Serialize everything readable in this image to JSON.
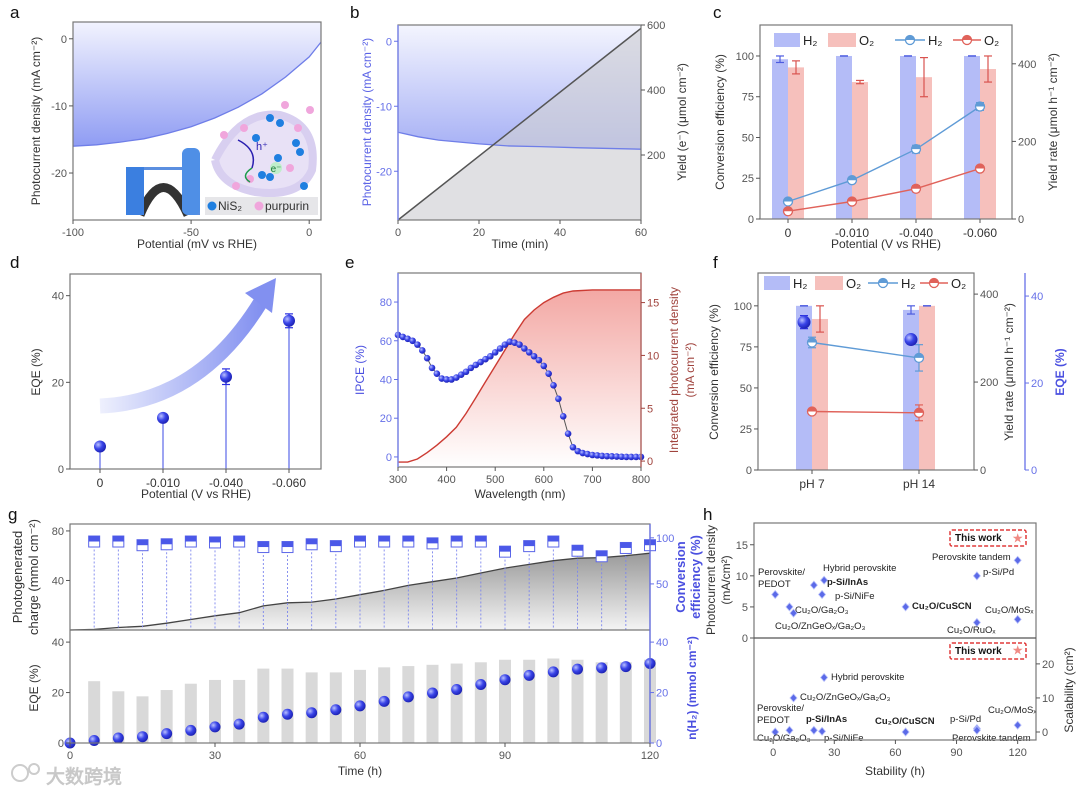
{
  "watermark": "大数跨境",
  "chart_data": [
    {
      "panel": "a",
      "type": "line",
      "xlabel": "Potential (mV vs RHE)",
      "ylabel": "Photocurrent density (mA cm⁻²)",
      "xlim": [
        -100,
        5
      ],
      "ylim": [
        -27,
        2.5
      ],
      "xticks": [
        -100,
        -50,
        0
      ],
      "yticks": [
        0,
        -10,
        -20
      ],
      "series": [
        {
          "name": "J-V",
          "color": "#6f7ee8",
          "points": [
            [
              -100,
              -16
            ],
            [
              -90,
              -15.8
            ],
            [
              -80,
              -15.4
            ],
            [
              -70,
              -14.9
            ],
            [
              -60,
              -14.1
            ],
            [
              -50,
              -13.1
            ],
            [
              -40,
              -11.8
            ],
            [
              -30,
              -10.2
            ],
            [
              -20,
              -8.2
            ],
            [
              -10,
              -5.7
            ],
            [
              0,
              -2.7
            ],
            [
              5,
              -0.5
            ]
          ]
        }
      ],
      "inset": {
        "legend": [
          "NiS₂",
          "purpurin"
        ],
        "hole_label": "h⁺",
        "electron_label": "e⁻"
      }
    },
    {
      "panel": "b",
      "type": "line",
      "xlabel": "Time (min)",
      "ylabel": "Photocurrent density (mA cm⁻²)",
      "ylabel_right": "Yield (e⁻) (μmol cm⁻²)",
      "xlim": [
        0,
        60
      ],
      "ylim": [
        -27.5,
        2.5
      ],
      "ylim_right": [
        0,
        600
      ],
      "xticks": [
        0,
        20,
        40,
        60
      ],
      "yticks": [
        0,
        -10,
        -20
      ],
      "yticks_right": [
        200,
        400,
        600
      ],
      "series": [
        {
          "name": "Photocurrent density",
          "axis": "left",
          "color": "#6f7ee8",
          "points": [
            [
              0,
              -14
            ],
            [
              5,
              -14.7
            ],
            [
              10,
              -15.2
            ],
            [
              15,
              -15.5
            ],
            [
              20,
              -15.8
            ],
            [
              27,
              -16.1
            ],
            [
              35,
              -16.2
            ],
            [
              45,
              -16.4
            ],
            [
              60,
              -16.6
            ]
          ]
        },
        {
          "name": "Yield",
          "axis": "right",
          "color": "#555",
          "points": [
            [
              0,
              0
            ],
            [
              60,
              590
            ]
          ]
        }
      ]
    },
    {
      "panel": "c",
      "type": "bar",
      "xlabel": "Potential (V vs RHE)",
      "ylabel": "Conversion efficiency (%)",
      "ylabel_right": "Yield rate (μmol h⁻¹ cm⁻²)",
      "categories": [
        "0",
        "-0.010",
        "-0.040",
        "-0.060"
      ],
      "ylim": [
        0,
        119
      ],
      "ylim_right": [
        0,
        500
      ],
      "yticks": [
        0,
        25,
        50,
        75,
        100
      ],
      "yticks_right": [
        0,
        200,
        400
      ],
      "legend": [
        "H₂",
        "O₂",
        "H₂",
        "O₂"
      ],
      "bars": [
        {
          "name": "H₂",
          "color": "#b4bcf7",
          "values": [
            98,
            100,
            100,
            100
          ],
          "errors": [
            2,
            0,
            0,
            0
          ]
        },
        {
          "name": "O₂",
          "color": "#f6c0bc",
          "values": [
            93,
            84,
            87,
            92
          ],
          "errors": [
            4,
            1,
            12,
            8
          ]
        }
      ],
      "lines": [
        {
          "name": "H₂",
          "color": "#5f9bd6",
          "values": [
            45,
            100,
            180,
            290
          ],
          "errors": [
            3,
            4,
            10,
            10
          ]
        },
        {
          "name": "O₂",
          "color": "#e0625a",
          "values": [
            20,
            45,
            78,
            130
          ],
          "errors": [
            3,
            3,
            8,
            6
          ]
        }
      ]
    },
    {
      "panel": "d",
      "type": "scatter",
      "xlabel": "Potential (V vs RHE)",
      "ylabel": "EQE (%)",
      "categories": [
        "0",
        "-0.010",
        "-0.040",
        "-0.060"
      ],
      "ylim": [
        0,
        45
      ],
      "yticks": [
        0,
        20,
        40
      ],
      "values": [
        5.2,
        11.8,
        21.3,
        34.2
      ],
      "errors": [
        0.5,
        0.5,
        1.8,
        1.6
      ],
      "color": "#2a2ee0"
    },
    {
      "panel": "e",
      "type": "line",
      "xlabel": "Wavelength (nm)",
      "ylabel": "IPCE (%)",
      "ylabel_right": [
        "Integrated photocurrent density",
        "(mA cm⁻²)"
      ],
      "xlim": [
        300,
        800
      ],
      "ylim": [
        -5.2,
        95
      ],
      "ylim_right": [
        -0.56,
        17.8
      ],
      "xticks": [
        300,
        400,
        500,
        600,
        700,
        800
      ],
      "yticks": [
        0,
        20,
        40,
        60,
        80
      ],
      "yticks_right": [
        0,
        5,
        10,
        15
      ],
      "ipce": {
        "color": "#2a2ee0",
        "x": [
          300,
          310,
          320,
          330,
          340,
          350,
          360,
          370,
          380,
          390,
          400,
          410,
          420,
          430,
          440,
          450,
          460,
          470,
          480,
          490,
          500,
          510,
          520,
          530,
          540,
          550,
          560,
          570,
          580,
          590,
          600,
          610,
          620,
          630,
          640,
          650,
          660,
          670,
          680,
          690,
          700,
          710,
          720,
          730,
          740,
          750,
          760,
          770,
          780,
          790,
          800
        ],
        "y": [
          63,
          62,
          61,
          60,
          58,
          55,
          51,
          46,
          43,
          40.5,
          40,
          40,
          41,
          42.5,
          44,
          46,
          47.5,
          49,
          50.5,
          52,
          54,
          56,
          58,
          59.5,
          59,
          58,
          56,
          54,
          52,
          50,
          47,
          43,
          37,
          30,
          21,
          12,
          5,
          3,
          2,
          1.5,
          1,
          0.8,
          0.5,
          0.4,
          0.3,
          0.2,
          0.1,
          0,
          0,
          0,
          0
        ]
      },
      "integrated": {
        "color": "#cc3b33",
        "x": [
          300,
          320,
          340,
          360,
          380,
          400,
          420,
          440,
          460,
          480,
          500,
          520,
          540,
          560,
          580,
          600,
          620,
          640,
          660,
          700,
          800
        ],
        "y": [
          -0.1,
          -0.1,
          0.2,
          0.8,
          1.5,
          2.3,
          3.2,
          4.5,
          6,
          7.5,
          9,
          10.5,
          12,
          13.4,
          14.3,
          15,
          15.5,
          15.9,
          16.1,
          16.2,
          16.2
        ]
      }
    },
    {
      "panel": "f",
      "type": "bar",
      "ylabel": "Conversion efficiency (%)",
      "ylabel_right": "Yield rate (μmol h⁻¹ cm⁻²)",
      "ylabel_right2": "EQE (%)",
      "categories": [
        "pH 7",
        "pH 14"
      ],
      "ylim": [
        0,
        120
      ],
      "ylim_right": [
        0,
        448
      ],
      "ylim_right2": [
        0,
        45.3
      ],
      "yticks": [
        0,
        25,
        50,
        75,
        100
      ],
      "yticks_right": [
        0,
        200,
        400
      ],
      "yticks_right2": [
        0,
        20,
        40
      ],
      "legend": [
        "H₂",
        "O₂",
        "H₂",
        "O₂"
      ],
      "bars": [
        {
          "name": "H₂",
          "color": "#b4bcf7",
          "values": [
            100,
            97.5
          ],
          "errors": [
            0,
            2.5
          ]
        },
        {
          "name": "O₂",
          "color": "#f6c0bc",
          "values": [
            92,
            100
          ],
          "errors": [
            8,
            0
          ]
        }
      ],
      "lines": [
        {
          "name": "H₂",
          "color": "#5f9bd6",
          "values": [
            290,
            255
          ],
          "errors": [
            12,
            30
          ]
        },
        {
          "name": "O₂",
          "color": "#e0625a",
          "values": [
            133,
            130
          ],
          "errors": [
            4,
            18
          ]
        }
      ],
      "eqe": {
        "color": "#2a2ee0",
        "values": [
          34,
          30
        ],
        "errors": [
          1.5,
          1
        ]
      }
    },
    {
      "panel": "g",
      "type": "line",
      "xlabel": "Time (h)",
      "xlim": [
        0,
        120
      ],
      "xticks": [
        0,
        30,
        60,
        90,
        120
      ],
      "top": {
        "ylabel": [
          "Photogenerated",
          "charge (mmol cm⁻²)"
        ],
        "ylabel_right": [
          "Conversion",
          "efficiency (%)"
        ],
        "ylim": [
          0,
          85.6
        ],
        "ylim_right": [
          0,
          115
        ],
        "yticks": [
          40,
          80
        ],
        "yticks_right": [
          50,
          100
        ],
        "charge": [
          [
            0,
            0
          ],
          [
            5,
            0.5
          ],
          [
            10,
            2
          ],
          [
            15,
            3
          ],
          [
            20,
            5.5
          ],
          [
            25,
            8.5
          ],
          [
            30,
            11.5
          ],
          [
            35,
            14
          ],
          [
            40,
            19.5
          ],
          [
            45,
            22
          ],
          [
            50,
            22.5
          ],
          [
            55,
            25
          ],
          [
            60,
            28.5
          ],
          [
            65,
            32
          ],
          [
            70,
            36
          ],
          [
            75,
            39
          ],
          [
            80,
            42
          ],
          [
            85,
            46
          ],
          [
            90,
            50
          ],
          [
            95,
            53
          ],
          [
            100,
            56
          ],
          [
            105,
            58
          ],
          [
            110,
            58.5
          ],
          [
            115,
            60
          ],
          [
            120,
            62
          ]
        ],
        "ce_x": [
          5,
          10,
          15,
          20,
          25,
          30,
          35,
          40,
          45,
          50,
          55,
          60,
          65,
          70,
          75,
          80,
          85,
          90,
          95,
          100,
          105,
          110,
          115,
          120
        ],
        "ce": [
          96,
          96,
          92,
          93,
          96,
          95,
          96,
          90,
          90,
          93,
          91,
          96,
          96,
          96,
          94,
          96,
          96,
          85,
          91,
          96,
          86,
          80,
          89,
          92
        ]
      },
      "bottom": {
        "ylabel": "EQE (%)",
        "ylabel_right": "n(H₂) (mmol cm⁻²)",
        "ylim": [
          0,
          44.8
        ],
        "yticks": [
          0,
          20,
          40
        ],
        "yticks_right": [
          0,
          20,
          40
        ],
        "eqe_x": [
          5,
          10,
          15,
          20,
          25,
          30,
          35,
          40,
          45,
          50,
          55,
          60,
          65,
          70,
          75,
          80,
          85,
          90,
          95,
          100,
          105,
          110,
          115,
          120
        ],
        "eqe": [
          24.5,
          20.5,
          18.5,
          21,
          23.5,
          25,
          25,
          29.5,
          29.5,
          28,
          28,
          29,
          30,
          30.5,
          31,
          31.5,
          32,
          33,
          33,
          33.5,
          33,
          32,
          32,
          33
        ],
        "nh2_x": [
          0,
          5,
          10,
          15,
          20,
          25,
          30,
          35,
          40,
          45,
          50,
          55,
          60,
          65,
          70,
          75,
          80,
          85,
          90,
          95,
          100,
          105,
          110,
          115,
          120
        ],
        "nh2": [
          0,
          1,
          2,
          2.5,
          3.7,
          5,
          6.4,
          7.5,
          10.2,
          11.4,
          12,
          13.2,
          14.7,
          16.5,
          18.3,
          19.8,
          21.2,
          23.2,
          25.1,
          26.8,
          28.2,
          29.3,
          29.8,
          30.3,
          31.5
        ]
      }
    },
    {
      "panel": "h",
      "type": "scatter",
      "xlabel": "Stability (h)",
      "xlim": [
        -9.4,
        129
      ],
      "xticks": [
        0,
        30,
        60,
        90,
        120
      ],
      "top": {
        "ylabel": [
          "Photocurrent density",
          "(mA/cm²)"
        ],
        "ylim": [
          0,
          18.5
        ],
        "yticks": [
          0,
          5,
          10,
          15
        ],
        "points": [
          {
            "label": "Perovskite/",
            "label2": "PEDOT",
            "x": 1,
            "y": 7
          },
          {
            "label": "Hybrid perovskite",
            "x": 25,
            "y": 9.3
          },
          {
            "label": "p-Si/InAs",
            "x": 20,
            "y": 8.5,
            "bold": true
          },
          {
            "label": "p-Si/NiFe",
            "x": 24,
            "y": 7
          },
          {
            "label": "Cu₂O/Ga₂O₃",
            "x": 8,
            "y": 5
          },
          {
            "label": "Cu₂O/ZnGeOₓ/Ga₂O₃",
            "x": 10,
            "y": 4
          },
          {
            "label": "Cu₂O/CuSCN",
            "x": 65,
            "y": 5,
            "bold": true
          },
          {
            "label": "Cu₂O/MoSₓ",
            "x": 120,
            "y": 3
          },
          {
            "label": "Cu₂O/RuOₓ",
            "x": 100,
            "y": 2.5
          },
          {
            "label": "p-Si/Pd",
            "x": 100,
            "y": 10
          },
          {
            "label": "Perovskite tandem",
            "x": 120,
            "y": 12.5
          },
          {
            "label": "This work",
            "x": 120,
            "y": 16,
            "highlight": true
          }
        ]
      },
      "bottom": {
        "ylabel": "Scalability (cm²)",
        "ylim": [
          -2.35,
          27.6
        ],
        "yticks": [
          0,
          10,
          20
        ],
        "points": [
          {
            "label": "Perovskite/",
            "label2": "PEDOT",
            "x": 1,
            "y": 0
          },
          {
            "label": "Hybrid perovskite",
            "x": 25,
            "y": 16
          },
          {
            "label": "Cu₂O/ZnGeOₓ/Ga₂O₃",
            "x": 10,
            "y": 10
          },
          {
            "label": "p-Si/InAs",
            "x": 20,
            "y": 0.5,
            "bold": true
          },
          {
            "label": "p-Si/NiFe",
            "x": 24,
            "y": 0.2
          },
          {
            "label": "Cu₂O/Ga₂O₃",
            "x": 8,
            "y": 0.5
          },
          {
            "label": "Cu₂O/CuSCN",
            "x": 65,
            "y": 0,
            "bold": true
          },
          {
            "label": "p-Si/Pd",
            "x": 100,
            "y": 1
          },
          {
            "label": "Perovskite tandem",
            "x": 100,
            "y": 0.5
          },
          {
            "label": "Cu₂O/MoSₓ",
            "x": 120,
            "y": 2
          },
          {
            "label": "This work",
            "x": 120,
            "y": 24,
            "highlight": true
          }
        ]
      }
    }
  ]
}
